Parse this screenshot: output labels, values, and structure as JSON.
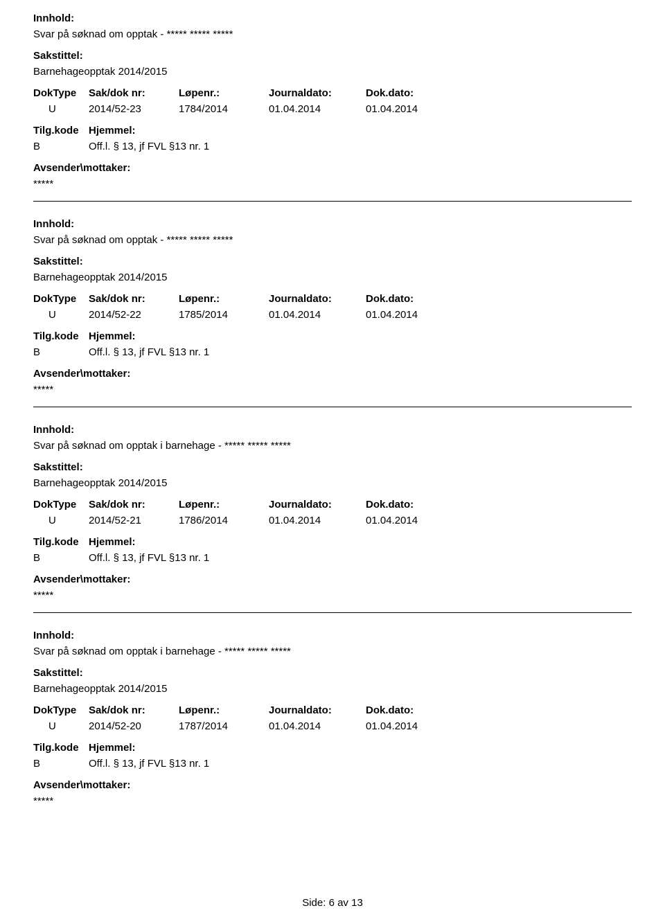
{
  "labels": {
    "innhold": "Innhold:",
    "sakstittel": "Sakstittel:",
    "doktype": "DokType",
    "sakdoknr": "Sak/dok nr:",
    "lopenr": "Løpenr.:",
    "journaldato": "Journaldato:",
    "dokdato": "Dok.dato:",
    "tilgkode": "Tilg.kode",
    "hjemmel": "Hjemmel:",
    "avsender": "Avsender\\mottaker:"
  },
  "entries": [
    {
      "innhold": "Svar på søknad om opptak - ***** ***** *****",
      "sakstittel": "Barnehageopptak 2014/2015",
      "doktype": "U",
      "sakdoknr": "2014/52-23",
      "lopenr": "1784/2014",
      "journaldato": "01.04.2014",
      "dokdato": "01.04.2014",
      "tilgkode": "B",
      "hjemmel": "Off.l. § 13, jf FVL §13 nr. 1",
      "avsender": "*****"
    },
    {
      "innhold": "Svar på søknad om opptak - ***** ***** *****",
      "sakstittel": "Barnehageopptak 2014/2015",
      "doktype": "U",
      "sakdoknr": "2014/52-22",
      "lopenr": "1785/2014",
      "journaldato": "01.04.2014",
      "dokdato": "01.04.2014",
      "tilgkode": "B",
      "hjemmel": "Off.l. § 13, jf FVL §13 nr. 1",
      "avsender": "*****"
    },
    {
      "innhold": "Svar på søknad om opptak i barnehage - ***** ***** *****",
      "sakstittel": "Barnehageopptak 2014/2015",
      "doktype": "U",
      "sakdoknr": "2014/52-21",
      "lopenr": "1786/2014",
      "journaldato": "01.04.2014",
      "dokdato": "01.04.2014",
      "tilgkode": "B",
      "hjemmel": "Off.l. § 13, jf FVL §13 nr. 1",
      "avsender": "*****"
    },
    {
      "innhold": "Svar på søknad om opptak i barnehage - ***** ***** *****",
      "sakstittel": "Barnehageopptak 2014/2015",
      "doktype": "U",
      "sakdoknr": "2014/52-20",
      "lopenr": "1787/2014",
      "journaldato": "01.04.2014",
      "dokdato": "01.04.2014",
      "tilgkode": "B",
      "hjemmel": "Off.l. § 13, jf FVL §13 nr. 1",
      "avsender": "*****"
    }
  ],
  "footer": {
    "prefix": "Side:",
    "page": "6",
    "sep": "av",
    "total": "13"
  }
}
